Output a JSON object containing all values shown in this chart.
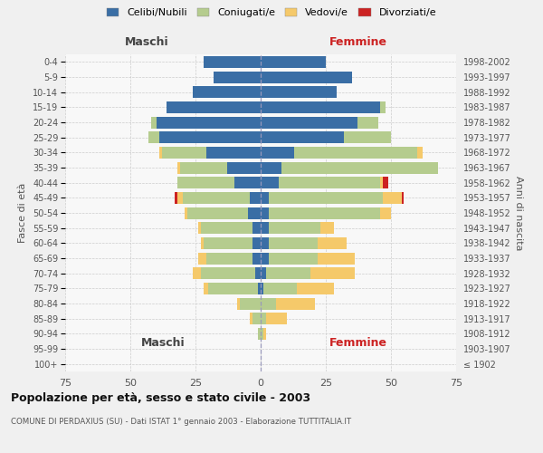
{
  "age_groups": [
    "100+",
    "95-99",
    "90-94",
    "85-89",
    "80-84",
    "75-79",
    "70-74",
    "65-69",
    "60-64",
    "55-59",
    "50-54",
    "45-49",
    "40-44",
    "35-39",
    "30-34",
    "25-29",
    "20-24",
    "15-19",
    "10-14",
    "5-9",
    "0-4"
  ],
  "birth_years": [
    "≤ 1902",
    "1903-1907",
    "1908-1912",
    "1913-1917",
    "1918-1922",
    "1923-1927",
    "1928-1932",
    "1933-1937",
    "1938-1942",
    "1943-1947",
    "1948-1952",
    "1953-1957",
    "1958-1962",
    "1963-1967",
    "1968-1972",
    "1973-1977",
    "1978-1982",
    "1983-1987",
    "1988-1992",
    "1993-1997",
    "1998-2002"
  ],
  "male": {
    "celibi": [
      0,
      0,
      0,
      0,
      0,
      1,
      2,
      3,
      3,
      3,
      5,
      4,
      10,
      13,
      21,
      39,
      40,
      36,
      26,
      18,
      22
    ],
    "coniugati": [
      0,
      0,
      1,
      3,
      8,
      19,
      21,
      18,
      19,
      20,
      23,
      26,
      22,
      18,
      17,
      4,
      2,
      0,
      0,
      0,
      0
    ],
    "vedovi": [
      0,
      0,
      0,
      1,
      1,
      2,
      3,
      3,
      1,
      1,
      1,
      2,
      0,
      1,
      1,
      0,
      0,
      0,
      0,
      0,
      0
    ],
    "divorziati": [
      0,
      0,
      0,
      0,
      0,
      0,
      0,
      0,
      0,
      0,
      0,
      1,
      0,
      0,
      0,
      0,
      0,
      0,
      0,
      0,
      0
    ]
  },
  "female": {
    "nubili": [
      0,
      0,
      0,
      0,
      0,
      1,
      2,
      3,
      3,
      3,
      3,
      3,
      7,
      8,
      13,
      32,
      37,
      46,
      29,
      35,
      25
    ],
    "coniugate": [
      0,
      0,
      1,
      2,
      6,
      13,
      17,
      19,
      19,
      20,
      43,
      44,
      39,
      60,
      47,
      18,
      8,
      2,
      0,
      0,
      0
    ],
    "vedove": [
      0,
      0,
      1,
      8,
      15,
      14,
      17,
      14,
      11,
      5,
      4,
      7,
      1,
      0,
      2,
      0,
      0,
      0,
      0,
      0,
      0
    ],
    "divorziate": [
      0,
      0,
      0,
      0,
      0,
      0,
      0,
      0,
      0,
      0,
      0,
      1,
      2,
      0,
      0,
      0,
      0,
      0,
      0,
      0,
      0
    ]
  },
  "colors": {
    "celibi": "#3a6ea5",
    "coniugati": "#b5cc8e",
    "vedovi": "#f5c96a",
    "divorziati": "#cc2222"
  },
  "legend_labels": [
    "Celibi/Nubili",
    "Coniugati/e",
    "Vedovi/e",
    "Divorziati/e"
  ],
  "xlim": 75,
  "title": "Popolazione per età, sesso e stato civile - 2003",
  "subtitle": "COMUNE DI PERDAXIUS (SU) - Dati ISTAT 1° gennaio 2003 - Elaborazione TUTTITALIA.IT",
  "xlabel_male": "Maschi",
  "xlabel_female": "Femmine",
  "ylabel_left": "Fasce di età",
  "ylabel_right": "Anni di nascita",
  "bg_color": "#f0f0f0",
  "plot_bg_color": "#f8f8f8"
}
